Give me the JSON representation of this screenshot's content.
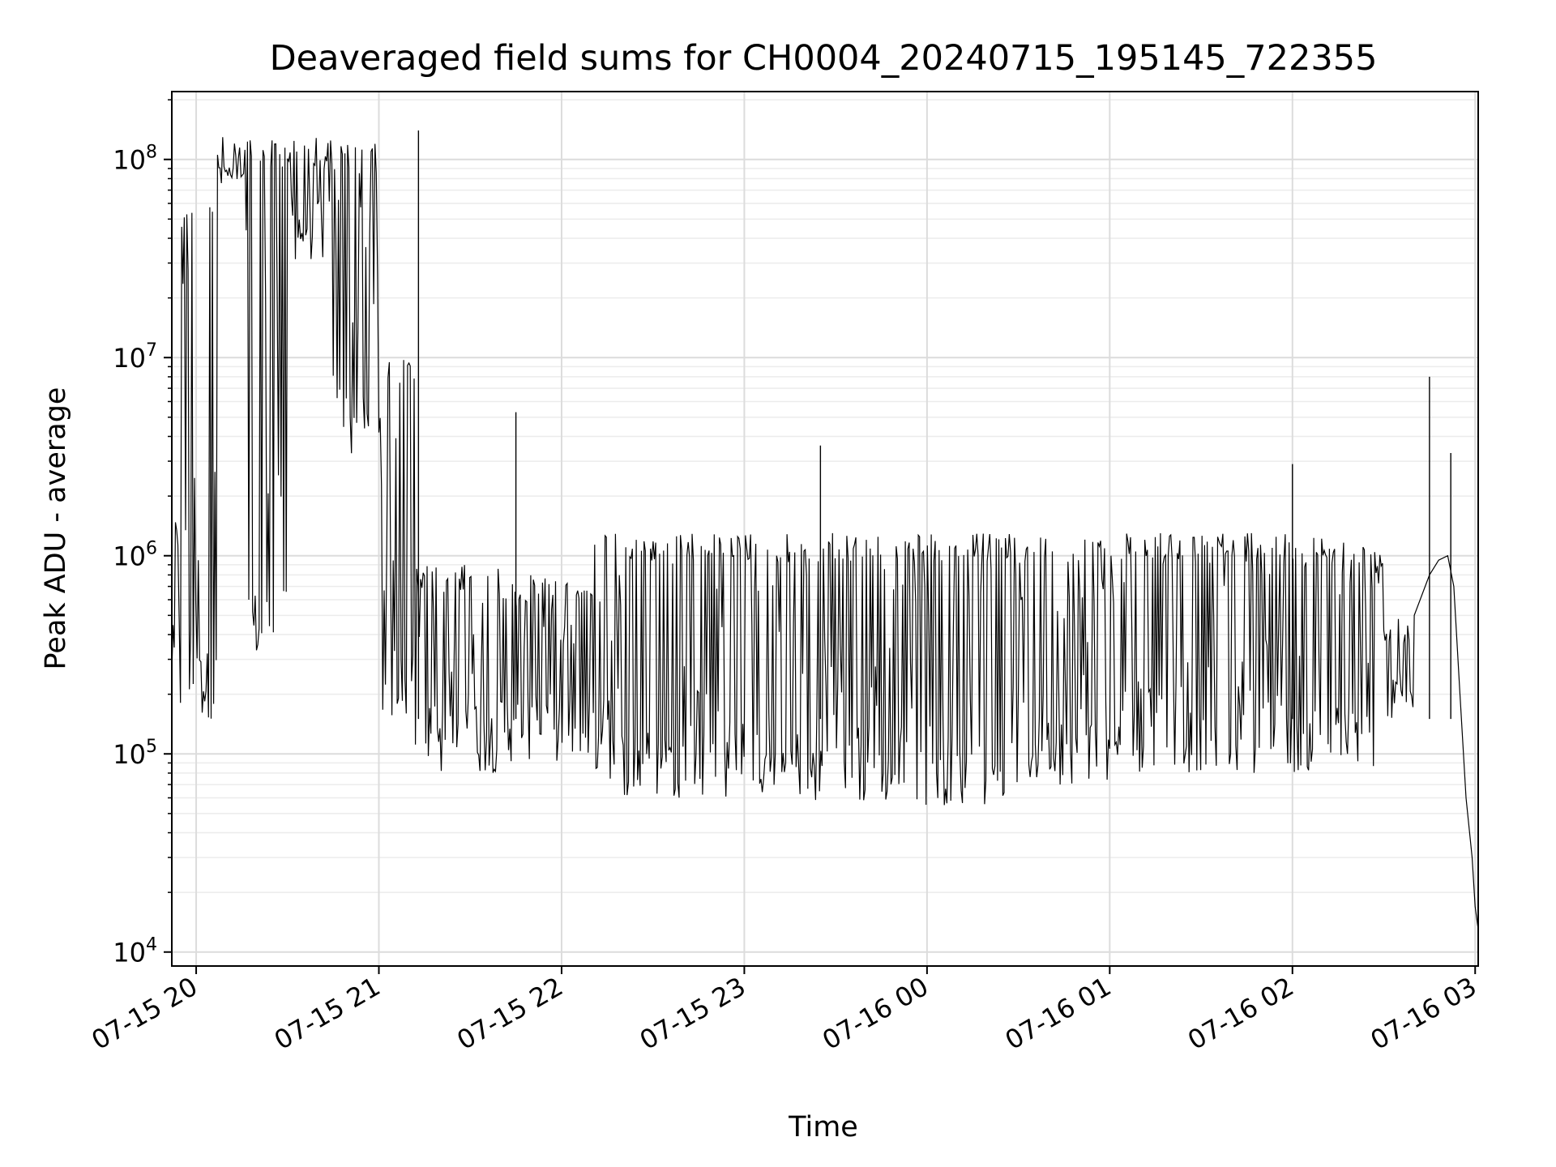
{
  "chart_data": {
    "type": "line",
    "title": "Deaveraged field sums for CH0004_20240715_195145_722355",
    "xlabel": "Time",
    "ylabel": "Peak ADU - average",
    "yscale": "log",
    "ylim": [
      8500,
      220000000
    ],
    "xlim": [
      "2024-07-15 19:52",
      "2024-07-16 03:01"
    ],
    "grid": true,
    "line_color": "#000000",
    "x_ticks": [
      "07-15 20",
      "07-15 21",
      "07-15 22",
      "07-15 23",
      "07-16 00",
      "07-16 01",
      "07-16 02",
      "07-16 03"
    ],
    "x_tick_values": [
      "2024-07-15 20:00",
      "2024-07-15 21:00",
      "2024-07-15 22:00",
      "2024-07-15 23:00",
      "2024-07-16 00:00",
      "2024-07-16 01:00",
      "2024-07-16 02:00",
      "2024-07-16 03:00"
    ],
    "y_ticks": [
      {
        "value": 10000,
        "base": "10",
        "exp": "4"
      },
      {
        "value": 100000,
        "base": "10",
        "exp": "5"
      },
      {
        "value": 1000000,
        "base": "10",
        "exp": "6"
      },
      {
        "value": 10000000,
        "base": "10",
        "exp": "7"
      },
      {
        "value": 100000000,
        "base": "10",
        "exp": "8"
      }
    ],
    "segments": [
      {
        "start": "2024-07-15 19:52",
        "end": "2024-07-15 19:54",
        "low": 200000,
        "high": 2000000
      },
      {
        "start": "2024-07-15 19:54",
        "end": "2024-07-15 20:07",
        "low": 150000,
        "high": 60000000
      },
      {
        "start": "2024-07-15 20:07",
        "end": "2024-07-15 20:16",
        "low": 60000000,
        "high": 110000000
      },
      {
        "start": "2024-07-15 20:16",
        "end": "2024-07-15 20:30",
        "low": 300000,
        "high": 125000000
      },
      {
        "start": "2024-07-15 20:30",
        "end": "2024-07-15 20:45",
        "low": 30000000,
        "high": 130000000
      },
      {
        "start": "2024-07-15 20:45",
        "end": "2024-07-15 21:00",
        "low": 3000000,
        "high": 120000000
      },
      {
        "start": "2024-07-15 21:00",
        "end": "2024-07-15 21:12",
        "low": 150000,
        "high": 10000000
      },
      {
        "start": "2024-07-15 21:12",
        "end": "2024-07-15 21:40",
        "low": 80000,
        "high": 900000
      },
      {
        "start": "2024-07-15 21:40",
        "end": "2024-07-15 22:10",
        "low": 90000,
        "high": 800000
      },
      {
        "start": "2024-07-15 22:10",
        "end": "2024-07-15 23:20",
        "low": 60000,
        "high": 1300000
      },
      {
        "start": "2024-07-15 23:20",
        "end": "2024-07-16 00:30",
        "low": 55000,
        "high": 1300000
      },
      {
        "start": "2024-07-16 00:30",
        "end": "2024-07-16 01:00",
        "low": 70000,
        "high": 1300000
      },
      {
        "start": "2024-07-16 01:00",
        "end": "2024-07-16 02:10",
        "low": 80000,
        "high": 1300000
      },
      {
        "start": "2024-07-16 02:10",
        "end": "2024-07-16 02:30",
        "low": 80000,
        "high": 1200000
      },
      {
        "start": "2024-07-16 02:30",
        "end": "2024-07-16 02:40",
        "low": 150000,
        "high": 500000
      }
    ],
    "spikes": [
      {
        "time": "2024-07-15 21:13",
        "value": 140000000
      },
      {
        "time": "2024-07-15 21:45",
        "value": 5300000
      },
      {
        "time": "2024-07-15 23:25",
        "value": 3600000
      },
      {
        "time": "2024-07-16 02:00",
        "value": 2900000
      },
      {
        "time": "2024-07-16 02:45",
        "value": 8000000
      },
      {
        "time": "2024-07-16 02:52",
        "value": 3300000
      }
    ],
    "tail": [
      {
        "time": "2024-07-16 02:40",
        "value": 500000
      },
      {
        "time": "2024-07-16 02:45",
        "value": 800000
      },
      {
        "time": "2024-07-16 02:48",
        "value": 950000
      },
      {
        "time": "2024-07-16 02:51",
        "value": 1000000
      },
      {
        "time": "2024-07-16 02:53",
        "value": 700000
      },
      {
        "time": "2024-07-16 02:55",
        "value": 200000
      },
      {
        "time": "2024-07-16 02:57",
        "value": 60000
      },
      {
        "time": "2024-07-16 02:59",
        "value": 30000
      },
      {
        "time": "2024-07-16 03:00",
        "value": 17000
      },
      {
        "time": "2024-07-16 03:01",
        "value": 13000
      }
    ]
  }
}
